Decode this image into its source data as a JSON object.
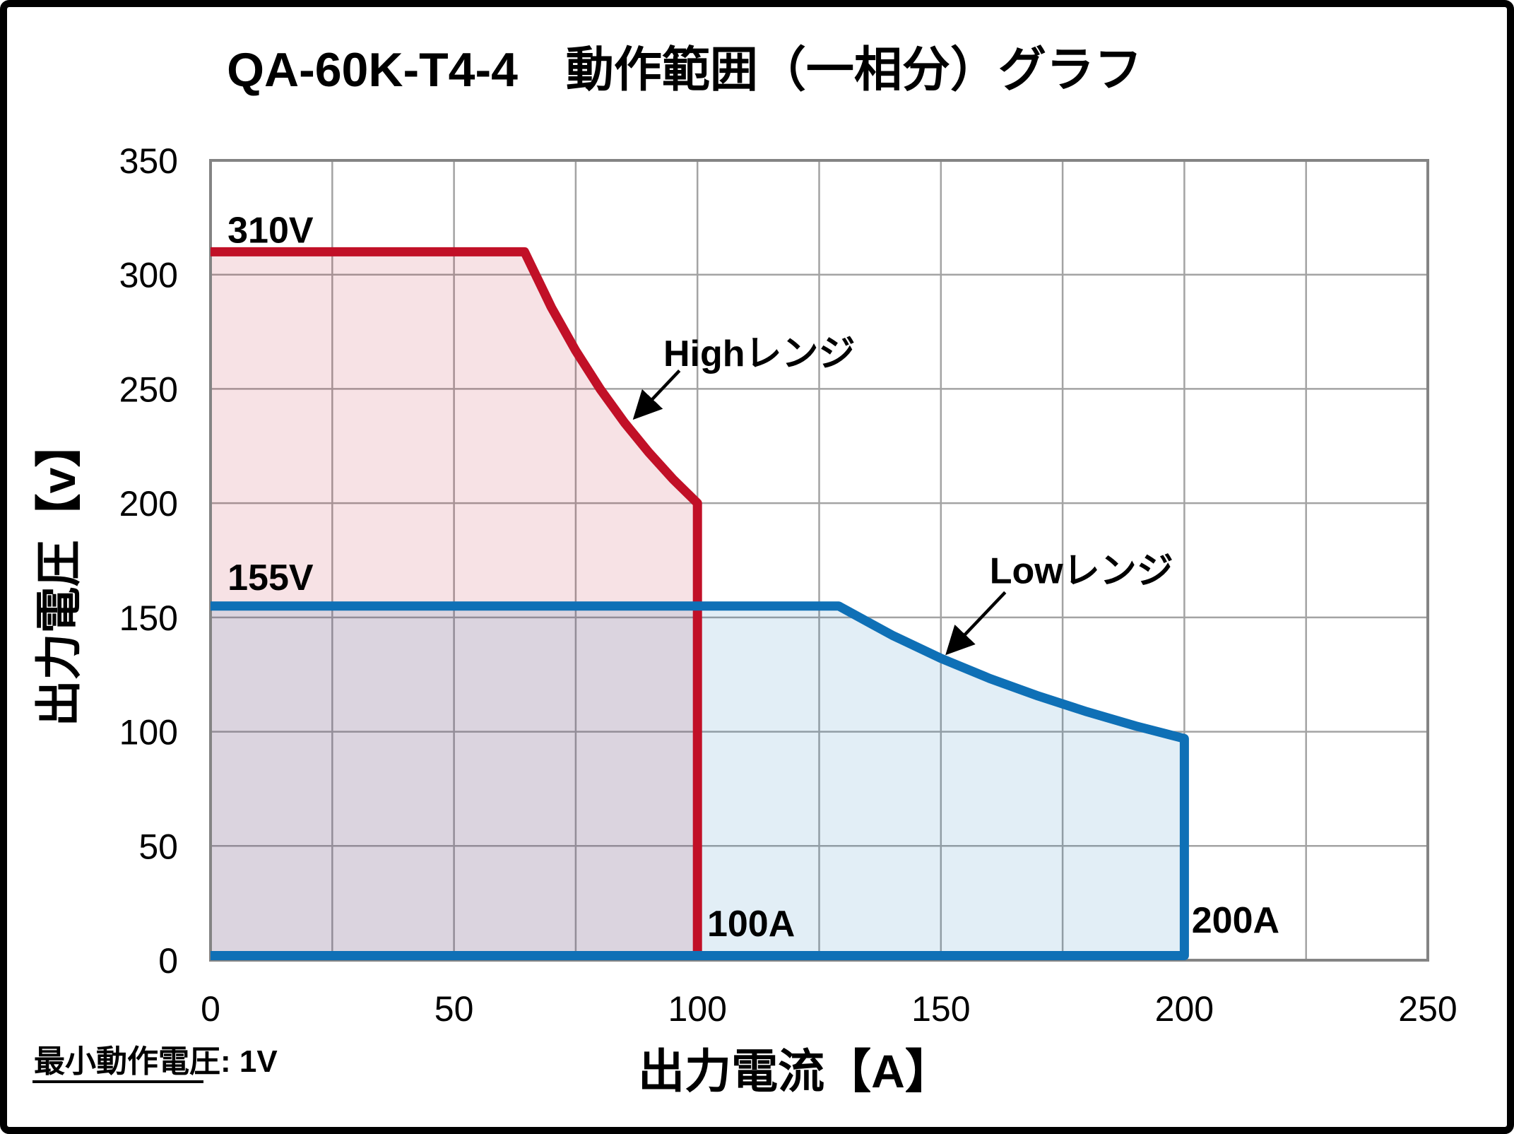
{
  "frame": {
    "background": "#ffffff",
    "border_color": "#000000"
  },
  "chart_data": {
    "type": "area",
    "title": "QA-60K-T4-4　動作範囲（一相分）グラフ",
    "xlabel": "出力電流【A】",
    "ylabel": "出力電圧【v】",
    "footnote": "最小動作電圧: 1V",
    "xlim": [
      0,
      250
    ],
    "ylim": [
      0,
      350
    ],
    "x_tick_step": 50,
    "y_tick_step": 50,
    "x_grid_step": 25,
    "y_grid_step": 50,
    "grid": true,
    "grid_color": "#a3a3a3",
    "plot_border_color": "#848484",
    "x_ticks": [
      0,
      50,
      100,
      150,
      200,
      250
    ],
    "y_ticks": [
      0,
      50,
      100,
      150,
      200,
      250,
      300,
      350
    ],
    "series": [
      {
        "name": "Highレンジ",
        "line_color": "#c11027",
        "fill_opacity": 0.12,
        "line_width": 13,
        "max_voltage_V": 310,
        "max_current_A": 100,
        "corner_point": [
          100,
          200
        ],
        "boundary": [
          [
            0,
            310
          ],
          [
            64.5,
            310
          ],
          [
            70,
            285.7
          ],
          [
            75,
            266.7
          ],
          [
            80,
            250
          ],
          [
            85,
            235.3
          ],
          [
            90,
            222.2
          ],
          [
            95,
            210.5
          ],
          [
            100,
            200
          ],
          [
            100,
            0
          ]
        ]
      },
      {
        "name": "Lowレンジ",
        "line_color": "#0f70b6",
        "fill_opacity": 0.12,
        "line_width": 13,
        "max_voltage_V": 155,
        "max_current_A": 200,
        "corner_point": [
          200,
          97
        ],
        "boundary": [
          [
            0,
            155
          ],
          [
            129,
            155
          ],
          [
            140,
            142.2
          ],
          [
            150,
            132.1
          ],
          [
            160,
            123.3
          ],
          [
            170,
            115.6
          ],
          [
            180,
            108.7
          ],
          [
            190,
            102.5
          ],
          [
            200,
            97
          ],
          [
            200,
            2
          ],
          [
            0,
            2
          ]
        ]
      }
    ],
    "annotations": [
      {
        "id": "label-310v",
        "text": "310V",
        "x": 3.5,
        "y": 314,
        "anchor": "start"
      },
      {
        "id": "label-155v",
        "text": "155V",
        "x": 3.5,
        "y": 162,
        "anchor": "start"
      },
      {
        "id": "label-100a",
        "text": "100A",
        "x": 102,
        "y": 10.5,
        "anchor": "start"
      },
      {
        "id": "label-200a",
        "text": "200A",
        "x": 201.5,
        "y": 12,
        "anchor": "start"
      },
      {
        "id": "label-high-range",
        "text": "Highレンジ",
        "x": 93,
        "y": 260,
        "anchor": "start"
      },
      {
        "id": "label-low-range",
        "text": "Lowレンジ",
        "x": 160,
        "y": 165,
        "anchor": "start"
      }
    ],
    "arrows": [
      {
        "id": "high-range-arrow",
        "from": [
          96.3,
          258
        ],
        "to": [
          87.4,
          238
        ]
      },
      {
        "id": "low-range-arrow",
        "from": [
          163.2,
          161
        ],
        "to": [
          151.6,
          135
        ]
      }
    ]
  }
}
